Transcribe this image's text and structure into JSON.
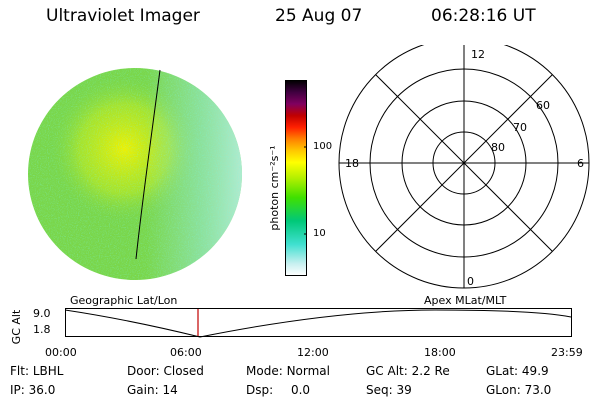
{
  "header": {
    "instrument": "Ultraviolet Imager",
    "date": "25 Aug 07",
    "time": "06:28:16 UT"
  },
  "colorbar": {
    "unit_label": "photon cm⁻²s⁻¹",
    "ticks": [
      "100",
      "10"
    ],
    "stops": [
      "#ffffff",
      "#c8f0f0",
      "#40e0d0",
      "#00c878",
      "#40e000",
      "#b4f000",
      "#ffff00",
      "#ffc800",
      "#ff8000",
      "#ff2000",
      "#c00000",
      "#800060",
      "#400040",
      "#000000"
    ]
  },
  "polar_plot": {
    "mlt_labels": {
      "top": "12",
      "left": "18",
      "right": "6",
      "bottom": "0"
    },
    "lat_labels": [
      "60",
      "70",
      "80"
    ]
  },
  "timeline": {
    "left_label": "Geographic Lat/Lon",
    "right_label": "Apex MLat/MLT",
    "y_axis_title": "GC Alt",
    "y_ticks": [
      "9.0",
      "1.8"
    ],
    "x_ticks": [
      "00:00",
      "06:00",
      "12:00",
      "18:00",
      "23:59"
    ]
  },
  "status": {
    "row1": [
      {
        "label": "Flt:",
        "value": "LBHL"
      },
      {
        "label": "Door:",
        "value": "Closed"
      },
      {
        "label": "Mode:",
        "value": "Normal"
      },
      {
        "label": "GC Alt:",
        "value": "2.2 Re"
      },
      {
        "label": "GLat:",
        "value": "49.9"
      }
    ],
    "row2": [
      {
        "label": "IP:",
        "value": "36.0"
      },
      {
        "label": "Gain:",
        "value": "14"
      },
      {
        "label": "Dsp:",
        "value": "0.0"
      },
      {
        "label": "Seq:",
        "value": "39"
      },
      {
        "label": "GLon:",
        "value": "73.0"
      }
    ]
  },
  "colors": {
    "image_base": "#7ad64a",
    "image_bright": "#e6f000",
    "current_time_marker": "#c00000"
  }
}
